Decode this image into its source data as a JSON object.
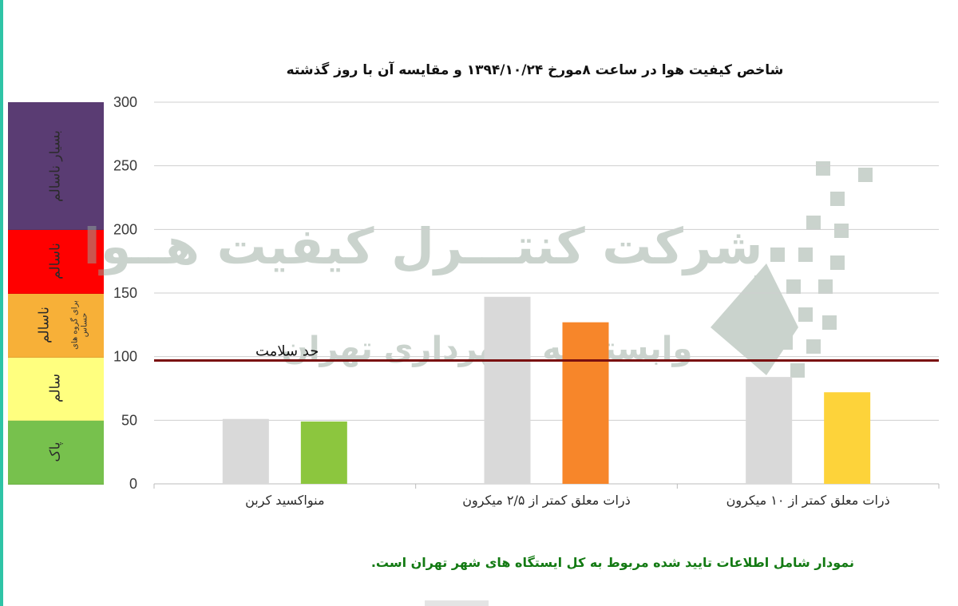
{
  "chart_data": {
    "type": "bar",
    "title": "شاخص کیفیت هوا در ساعت ۸مورخ ۱۳۹۴/۱۰/۲۴ و مقایسه آن با روز گذشته",
    "categories": [
      "منواکسید کربن",
      "ذرات معلق کمتر از ۲/۵ میکرون",
      "ذرات معلق کمتر از ۱۰ میکرون"
    ],
    "series": [
      {
        "values": [
          51,
          147,
          84
        ],
        "color": "#d9d9d9"
      },
      {
        "values": [
          49,
          127,
          72
        ],
        "colors": [
          "#8cc63e",
          "#f7862a",
          "#fdd33a"
        ]
      }
    ],
    "ylim": [
      0,
      300
    ],
    "yticks": [
      0,
      50,
      100,
      150,
      200,
      250,
      300
    ],
    "grid": true,
    "threshold": {
      "value": 97,
      "label": "حد سلامت",
      "color": "#7a0f0f"
    },
    "aqi_bands": [
      {
        "label": "پاک",
        "from": 0,
        "to": 50,
        "color": "#77c14d"
      },
      {
        "label": "سالم",
        "from": 50,
        "to": 100,
        "color": "#ffff7f"
      },
      {
        "label": "ناسالم",
        "sub": "برای گروه های حساس",
        "from": 100,
        "to": 150,
        "color": "#f7b038"
      },
      {
        "label": "ناسالم",
        "from": 150,
        "to": 200,
        "color": "#ff0000"
      },
      {
        "label": "بسیار ناسالم",
        "from": 200,
        "to": 300,
        "color": "#5a3c73"
      }
    ]
  },
  "watermark": {
    "line1": "شرکت کنتـــرل کیفیت هــوا",
    "line2": "وابسته به شهرداری تهران"
  },
  "footnote": "نمودار شامل اطلاعات تایید شده مربوط به کل ایستگاه های شهر تهران است."
}
